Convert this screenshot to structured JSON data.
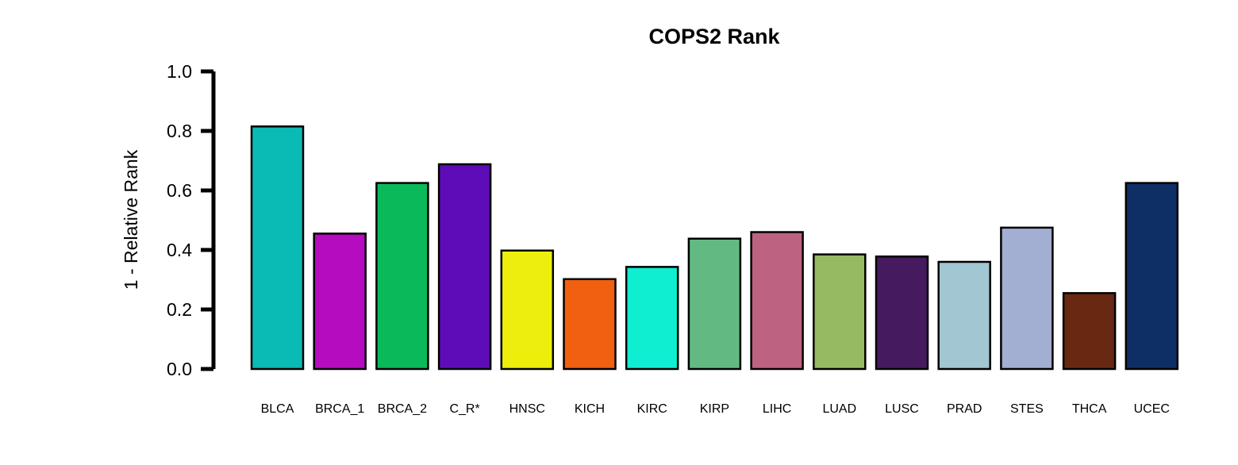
{
  "chart_data": {
    "type": "bar",
    "title": "COPS2 Rank",
    "xlabel": "",
    "ylabel": "1 - Relative Rank",
    "ylim": [
      0,
      1
    ],
    "yticks": [
      "0.0",
      "0.2",
      "0.4",
      "0.6",
      "0.8",
      "1.0"
    ],
    "grid": false,
    "legend": "none",
    "categories": [
      "BLCA",
      "BRCA_1",
      "BRCA_2",
      "C_R*",
      "HNSC",
      "KICH",
      "KIRC",
      "KIRP",
      "LIHC",
      "LUAD",
      "LUSC",
      "PRAD",
      "STES",
      "THCA",
      "UCEC"
    ],
    "values": [
      0.815,
      0.455,
      0.625,
      0.688,
      0.398,
      0.302,
      0.343,
      0.438,
      0.46,
      0.385,
      0.378,
      0.36,
      0.475,
      0.255,
      0.625
    ],
    "colors": [
      "#0ABAB5",
      "#B40CBE",
      "#0ABA5A",
      "#5E0CB7",
      "#EEEE0C",
      "#F06010",
      "#10EED2",
      "#62BA82",
      "#BE6282",
      "#96BA62",
      "#461A5E",
      "#A2C6D2",
      "#A2AED2",
      "#682812",
      "#0E2E66"
    ]
  }
}
